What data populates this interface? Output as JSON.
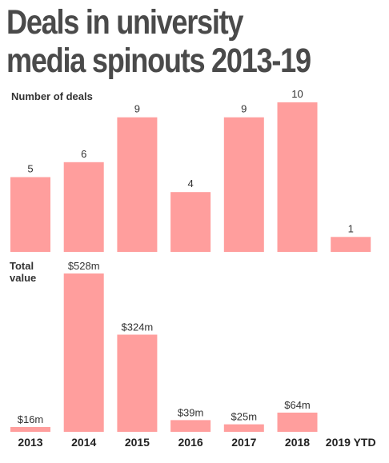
{
  "title_lines": [
    "Deals in university",
    "media spinouts 2013-19"
  ],
  "colors": {
    "bar": "#ff9e9d",
    "text": "#333333",
    "title": "#4a4a4a"
  },
  "chart_data": [
    {
      "type": "bar",
      "ylabel": "Number of deals",
      "categories": [
        "2013",
        "2014",
        "2015",
        "2016",
        "2017",
        "2018",
        "2019 YTD"
      ],
      "values": [
        5,
        6,
        9,
        4,
        9,
        10,
        1
      ],
      "value_labels": [
        "5",
        "6",
        "9",
        "4",
        "9",
        "10",
        "1"
      ],
      "ylim": [
        0,
        10
      ],
      "grid": false
    },
    {
      "type": "bar",
      "ylabel": [
        "Total",
        "value"
      ],
      "categories": [
        "2013",
        "2014",
        "2015",
        "2016",
        "2017",
        "2018",
        "2019 YTD"
      ],
      "values": [
        16,
        528,
        324,
        39,
        25,
        64,
        null
      ],
      "value_labels": [
        "$16m",
        "$528m",
        "$324m",
        "$39m",
        "$25m",
        "$64m",
        ""
      ],
      "ylim": [
        0,
        528
      ],
      "grid": false
    }
  ]
}
